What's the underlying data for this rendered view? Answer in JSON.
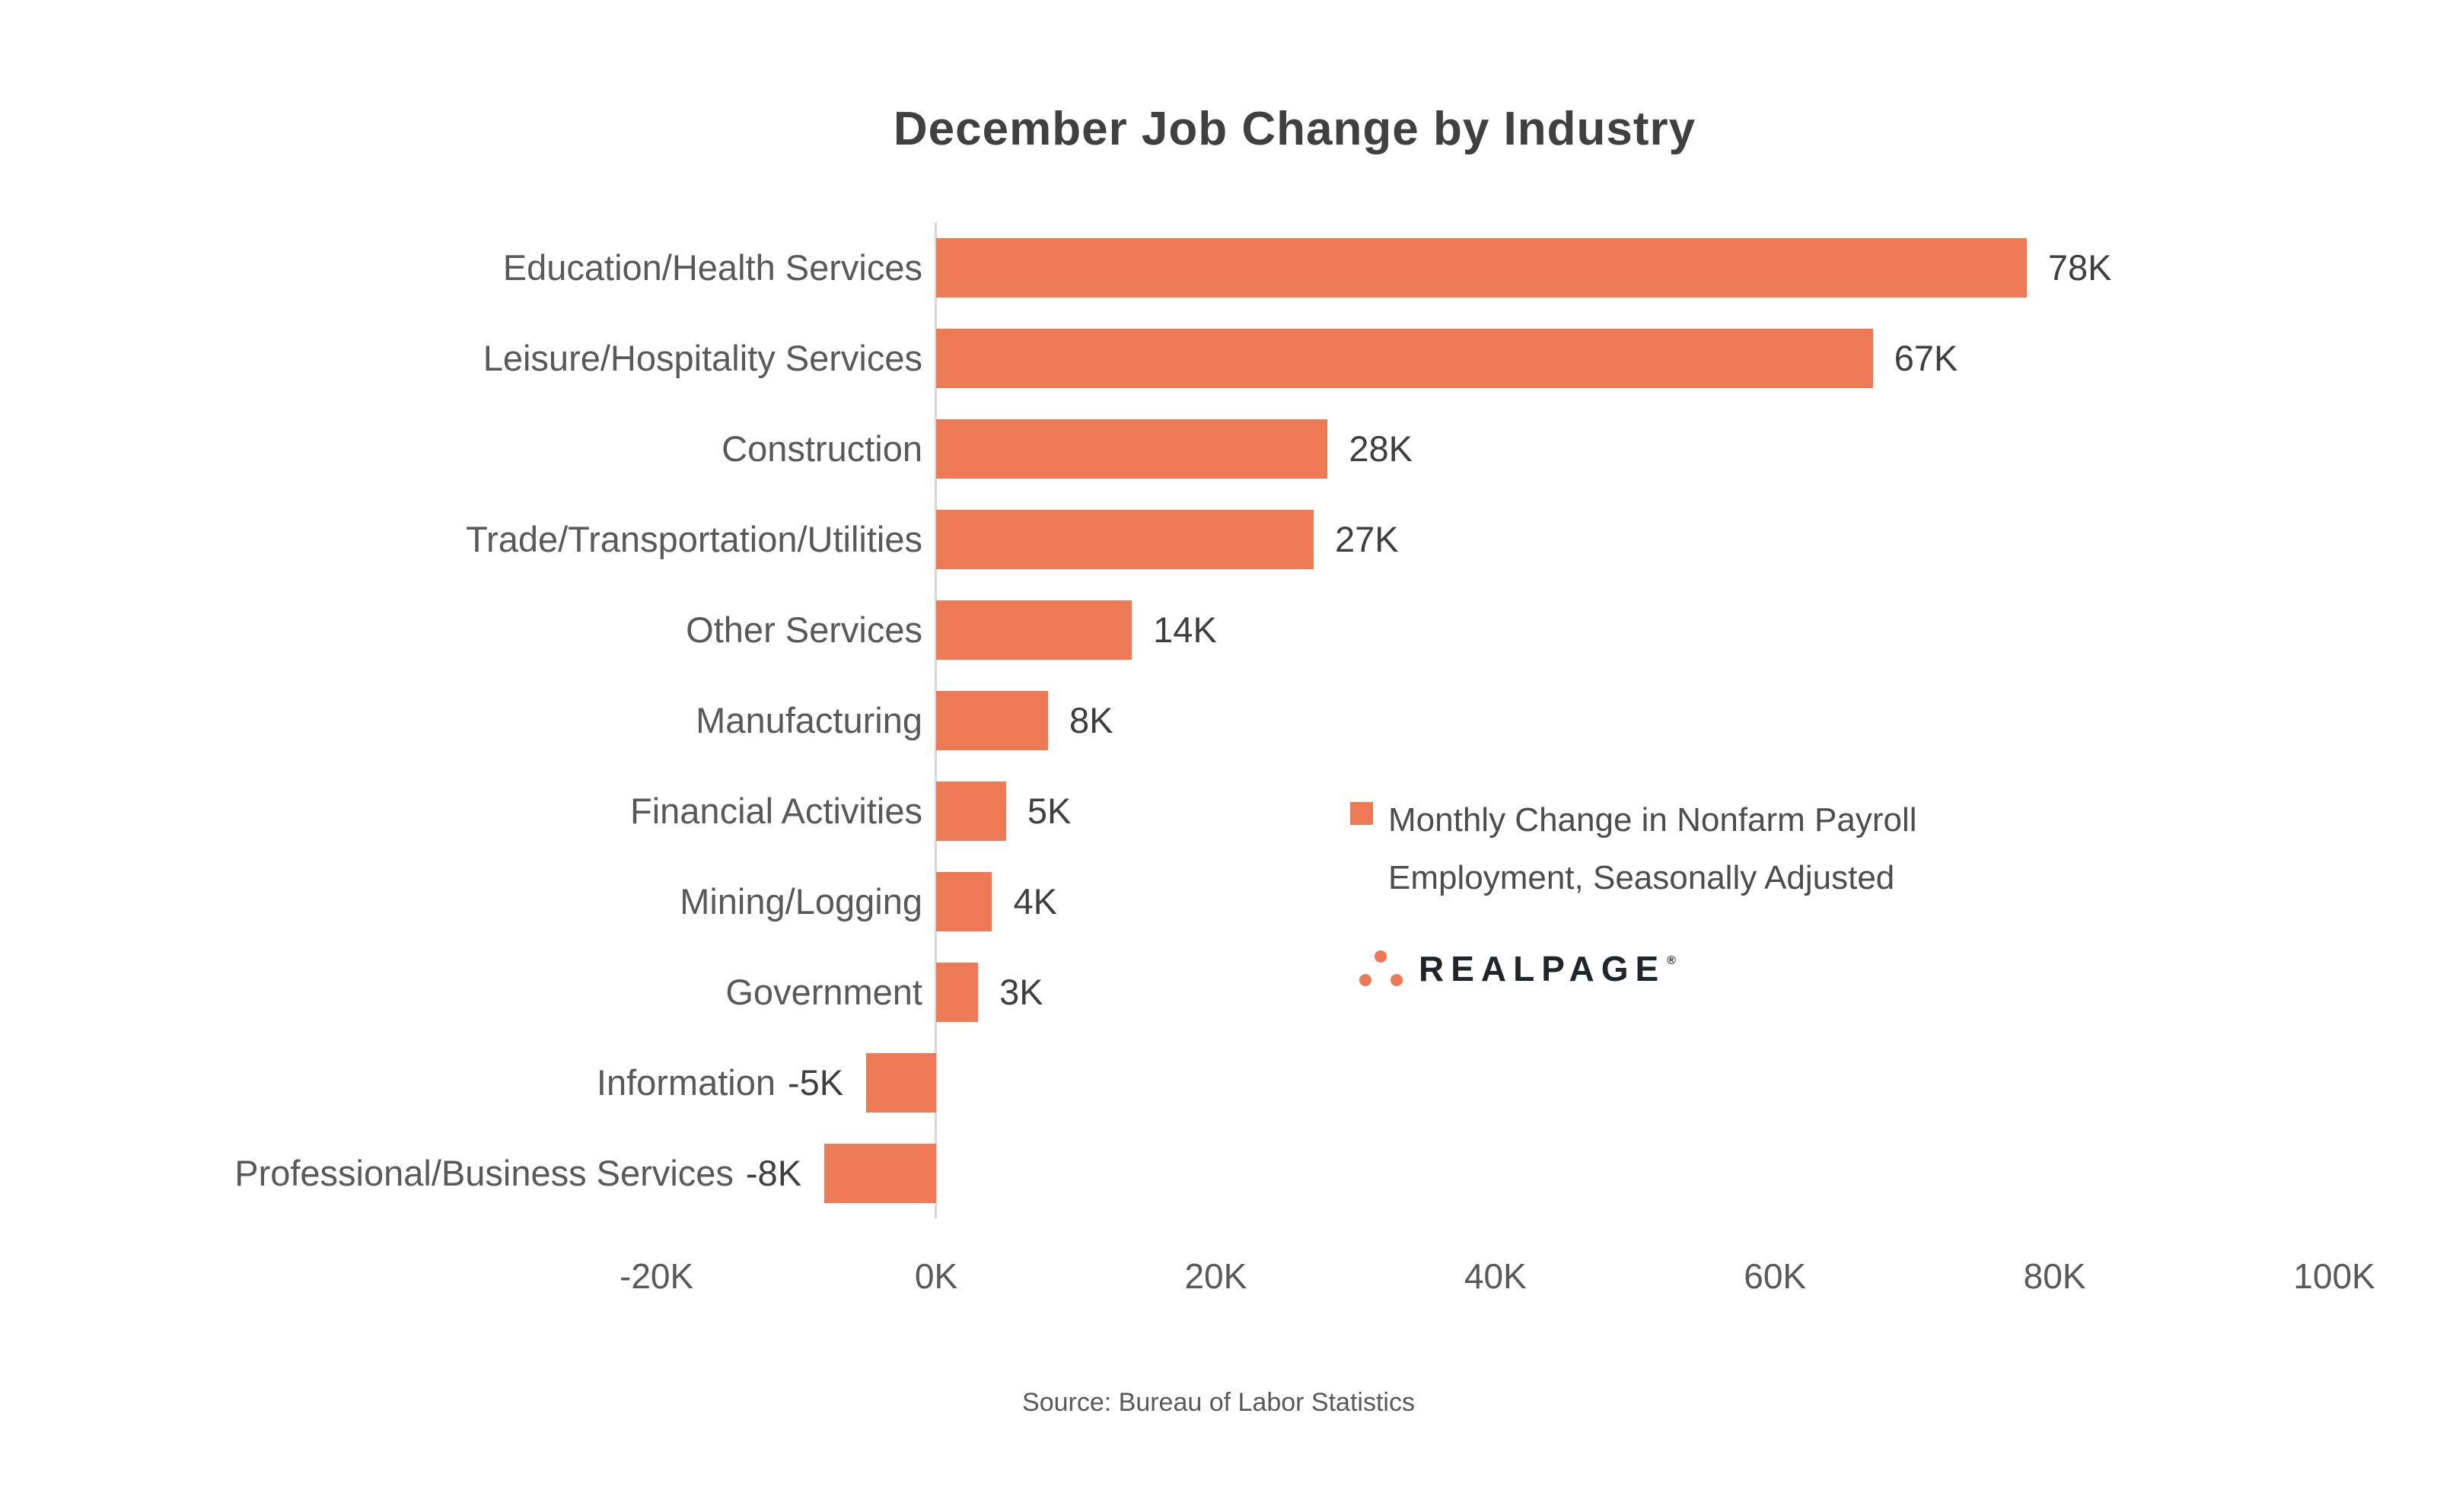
{
  "header": {
    "title": "December Job Change by Industry"
  },
  "legend": {
    "label": "Monthly Change in Nonfarm Payroll Employment, Seasonally Adjusted",
    "lines": [
      "Monthly Change in Nonfarm Payroll",
      "Employment, Seasonally Adjusted"
    ]
  },
  "branding": {
    "name": "REALPAGE",
    "registered": "®"
  },
  "footer": {
    "source": "Source: Bureau of Labor Statistics"
  },
  "colors": {
    "accent": "#ED7A54",
    "axis_line": "#D8D8D8",
    "title_text": "#404040",
    "category_text": "#595959",
    "value_text": "#3F3F3F",
    "logo_text": "#212529"
  },
  "chart_data": {
    "type": "bar",
    "orientation": "horizontal",
    "title": "December Job Change by Industry",
    "categories": [
      "Education/Health Services",
      "Leisure/Hospitality Services",
      "Construction",
      "Trade/Transportation/Utilities",
      "Other Services",
      "Manufacturing",
      "Financial Activities",
      "Mining/Logging",
      "Government",
      "Information",
      "Professional/Business Services"
    ],
    "values_k": [
      78,
      67,
      28,
      27,
      14,
      8,
      5,
      4,
      3,
      -5,
      -8
    ],
    "value_labels": [
      "78K",
      "67K",
      "28K",
      "27K",
      "14K",
      "8K",
      "5K",
      "4K",
      "3K",
      "-5K",
      "-8K"
    ],
    "unit": "thousands of jobs",
    "xlabel": "",
    "ylabel": "",
    "xlim": [
      -20,
      100
    ],
    "x_ticks": [
      {
        "value": -20,
        "label": "-20K"
      },
      {
        "value": 0,
        "label": "0K"
      },
      {
        "value": 20,
        "label": "20K"
      },
      {
        "value": 40,
        "label": "40K"
      },
      {
        "value": 60,
        "label": "60K"
      },
      {
        "value": 80,
        "label": "80K"
      },
      {
        "value": 100,
        "label": "100K"
      }
    ],
    "bar_color": "#ED7A54",
    "grid": false,
    "legend_entries": [
      "Monthly Change in Nonfarm Payroll Employment, Seasonally Adjusted"
    ],
    "legend_position": "center-right",
    "source": "Source: Bureau of Labor Statistics"
  }
}
